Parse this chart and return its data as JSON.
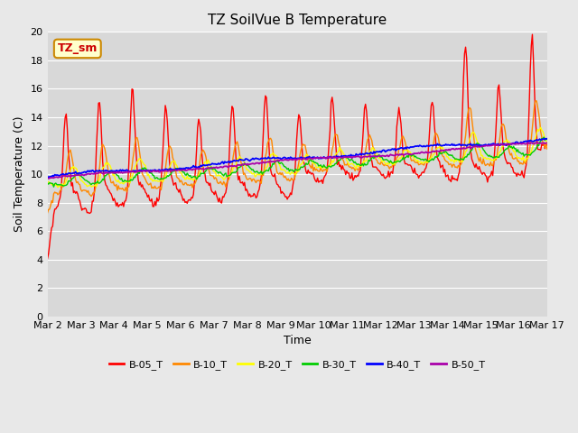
{
  "title": "TZ SoilVue B Temperature",
  "xlabel": "Time",
  "ylabel": "Soil Temperature (C)",
  "ylim": [
    0,
    20
  ],
  "yticks": [
    0,
    2,
    4,
    6,
    8,
    10,
    12,
    14,
    16,
    18,
    20
  ],
  "background_color": "#e8e8e8",
  "plot_bg_color": "#d8d8d8",
  "x_labels": [
    "Mar 2",
    "Mar 3",
    "Mar 4",
    "Mar 5",
    "Mar 6",
    "Mar 7",
    "Mar 8",
    "Mar 9",
    "Mar 10",
    "Mar 11",
    "Mar 12",
    "Mar 13",
    "Mar 14",
    "Mar 15",
    "Mar 16",
    "Mar 17"
  ],
  "annotation_text": "TZ_sm",
  "annotation_color": "#cc0000",
  "annotation_bg": "#ffffcc",
  "series_colors": {
    "B-05_T": "#ff0000",
    "B-10_T": "#ff8800",
    "B-20_T": "#ffff00",
    "B-30_T": "#00cc00",
    "B-40_T": "#0000ff",
    "B-50_T": "#aa00aa"
  }
}
